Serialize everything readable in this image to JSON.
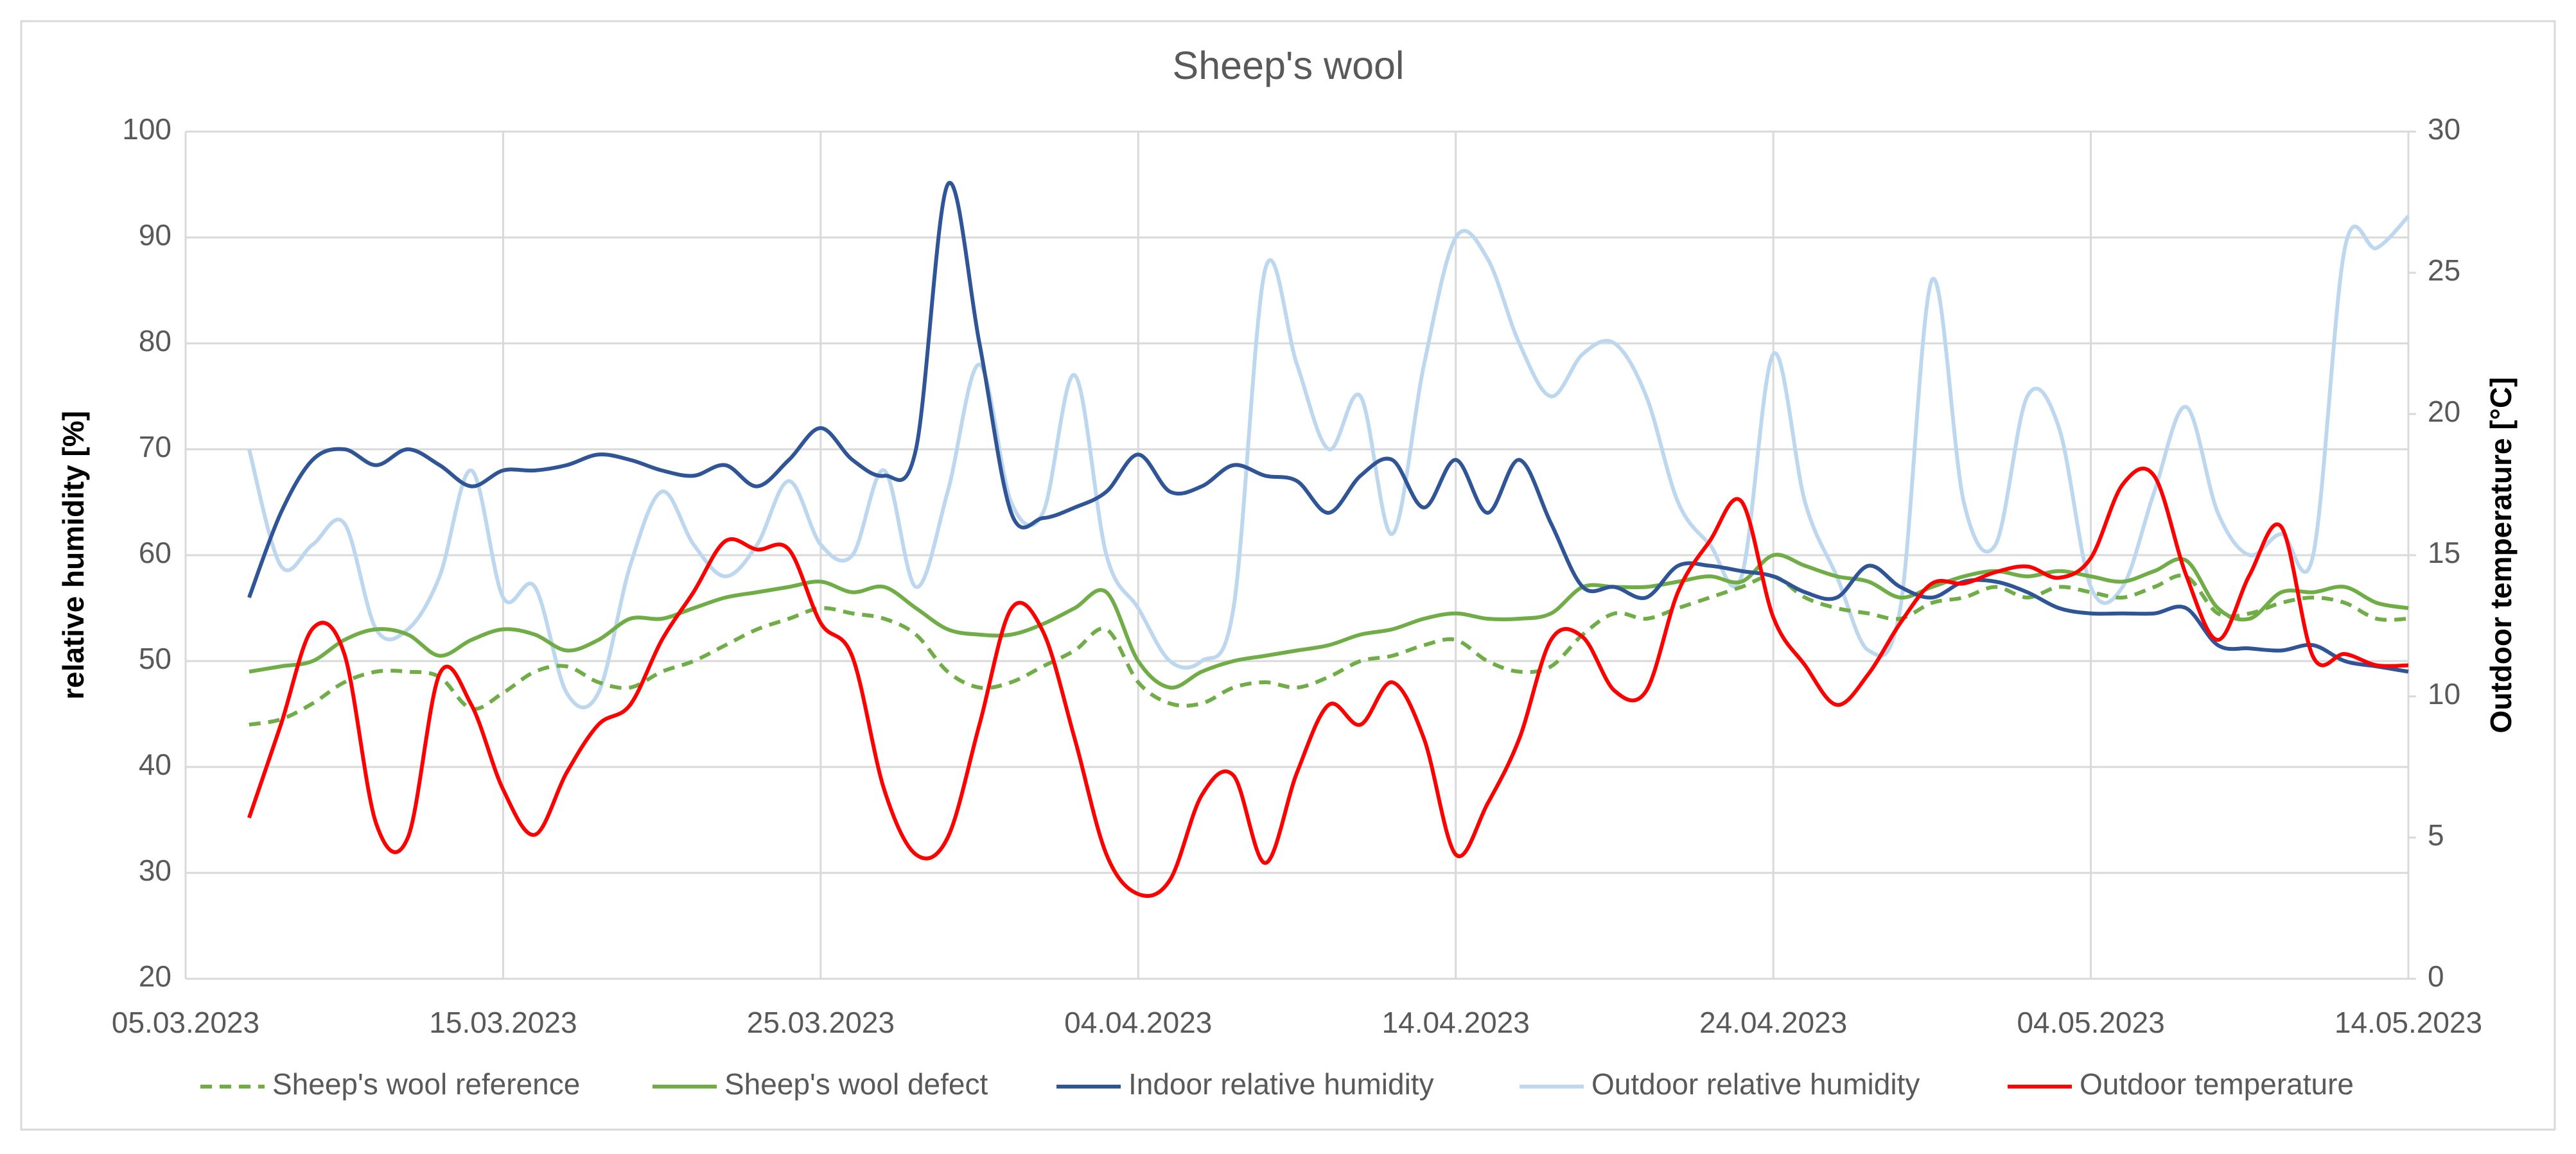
{
  "chart_data": {
    "type": "line",
    "title": "Sheep's wool",
    "y_label": "relative humidity [%]",
    "y2_label": "Outdoor temperature [°C]",
    "x": [
      "07.03.2023",
      "08.03.2023",
      "09.03.2023",
      "10.03.2023",
      "11.03.2023",
      "12.03.2023",
      "13.03.2023",
      "14.03.2023",
      "15.03.2023",
      "16.03.2023",
      "17.03.2023",
      "18.03.2023",
      "19.03.2023",
      "20.03.2023",
      "21.03.2023",
      "22.03.2023",
      "23.03.2023",
      "24.03.2023",
      "25.03.2023",
      "26.03.2023",
      "27.03.2023",
      "28.03.2023",
      "29.03.2023",
      "30.03.2023",
      "31.03.2023",
      "01.04.2023",
      "02.04.2023",
      "03.04.2023",
      "04.04.2023",
      "05.04.2023",
      "06.04.2023",
      "07.04.2023",
      "08.04.2023",
      "09.04.2023",
      "10.04.2023",
      "11.04.2023",
      "12.04.2023",
      "13.04.2023",
      "14.04.2023",
      "15.04.2023",
      "16.04.2023",
      "17.04.2023",
      "18.04.2023",
      "19.04.2023",
      "20.04.2023",
      "21.04.2023",
      "22.04.2023",
      "23.04.2023",
      "24.04.2023",
      "25.04.2023",
      "26.04.2023",
      "27.04.2023",
      "28.04.2023",
      "29.04.2023",
      "30.04.2023",
      "01.05.2023",
      "02.05.2023",
      "03.05.2023",
      "04.05.2023",
      "05.05.2023",
      "06.05.2023",
      "07.05.2023",
      "08.05.2023",
      "09.05.2023",
      "10.05.2023",
      "11.05.2023",
      "12.05.2023",
      "13.05.2023",
      "14.05.2023"
    ],
    "series": [
      {
        "name": "Sheep's wool reference",
        "color": "#70ad47",
        "line_style": "dashed",
        "values": [
          44,
          44.5,
          46,
          48,
          49,
          49,
          48.5,
          45.5,
          47,
          49,
          49.5,
          48,
          47.5,
          49,
          50,
          51.5,
          53,
          54,
          55,
          54.5,
          54,
          52.5,
          49,
          47.5,
          48,
          49.5,
          51,
          53,
          48,
          46,
          46,
          47.5,
          48,
          47.5,
          48.5,
          50,
          50.5,
          51.5,
          52,
          50,
          49,
          49.5,
          52.5,
          54.5,
          54,
          55,
          56,
          57,
          58,
          56,
          55,
          54.5,
          54,
          55.5,
          56,
          57,
          56,
          57,
          56.5,
          56,
          57,
          58,
          54.5,
          54.5,
          55.5,
          56,
          55.5,
          54,
          54
        ]
      },
      {
        "name": "Sheep's wool defect",
        "color": "#70ad47",
        "values": [
          49,
          49.5,
          50,
          52,
          53,
          52.5,
          50.5,
          52,
          53,
          52.5,
          51,
          52,
          54,
          54,
          55,
          56,
          56.5,
          57,
          57.5,
          56.5,
          57,
          55,
          53,
          52.5,
          52.5,
          53.5,
          55,
          56.5,
          50,
          47.5,
          49,
          50,
          50.5,
          51,
          51.5,
          52.5,
          53,
          54,
          54.5,
          54,
          54,
          54.5,
          57,
          57,
          57,
          57.5,
          58,
          57.5,
          60,
          59,
          58,
          57.5,
          56,
          57,
          58,
          58.5,
          58,
          58.5,
          58,
          57.5,
          58.5,
          59.5,
          55,
          54,
          56.5,
          56.5,
          57,
          55.5,
          55
        ]
      },
      {
        "name": "Indoor relative humidity",
        "color": "#2f5597",
        "values": [
          56,
          64,
          69,
          70,
          68.5,
          70,
          68.5,
          66.5,
          68,
          68,
          68.5,
          69.5,
          69,
          68,
          67.5,
          68.5,
          66.5,
          69,
          72,
          69,
          67.5,
          70,
          95,
          80,
          64,
          63.5,
          64.5,
          66,
          69.5,
          66,
          66.5,
          68.5,
          67.5,
          67,
          64,
          67.5,
          69,
          64.5,
          69,
          64,
          69,
          63,
          57,
          57,
          56,
          59,
          59,
          58.5,
          58,
          56.5,
          56,
          59,
          57,
          56,
          57.5,
          57.5,
          56.5,
          55,
          54.5,
          54.5,
          54.5,
          55,
          51.5,
          51.2,
          51,
          51.5,
          50,
          49.5,
          49
        ]
      },
      {
        "name": "Outdoor relative humidity",
        "color": "#bdd7ee",
        "values": [
          70,
          59,
          61,
          63,
          53,
          53,
          58,
          68,
          56,
          57,
          47,
          47,
          59,
          66,
          61,
          58,
          61,
          67,
          61,
          60,
          68,
          57,
          66,
          78,
          65,
          64,
          77,
          60,
          55,
          50,
          50,
          55,
          87,
          78,
          70,
          75,
          62,
          78,
          90,
          88,
          80,
          75,
          79,
          80,
          75,
          65,
          61,
          58,
          79,
          65,
          58,
          51,
          55,
          86,
          65,
          61,
          75,
          72,
          57,
          57,
          66,
          74,
          64,
          60,
          62,
          60,
          89,
          89,
          92
        ]
      },
      {
        "name": "Outdoor temperature",
        "color": "#ff0000",
        "axis": "y2",
        "values": [
          5.7,
          9,
          12.4,
          11.5,
          5.5,
          5,
          10.8,
          9.7,
          6.7,
          5.1,
          7.3,
          9,
          9.7,
          12,
          13.7,
          15.5,
          15.2,
          15.2,
          12.6,
          11.4,
          6.7,
          4.4,
          5,
          9,
          13.1,
          12.3,
          8.5,
          4.4,
          3,
          3.5,
          6.5,
          7.2,
          4.1,
          7.3,
          9.7,
          9,
          10.5,
          8.5,
          4.4,
          6.2,
          8.5,
          12,
          12.1,
          10.2,
          10.2,
          13.7,
          15.5,
          16.9,
          12.8,
          11.1,
          9.7,
          10.8,
          12.6,
          14,
          14,
          14.4,
          14.6,
          14.2,
          14.9,
          17.5,
          17.8,
          14.3,
          12,
          14.3,
          16,
          11.4,
          11.5,
          11.1,
          11.1
        ]
      }
    ],
    "xlim": [
      "05.03.2023",
      "14.05.2023"
    ],
    "xticks": [
      "05.03.2023",
      "15.03.2023",
      "25.03.2023",
      "04.04.2023",
      "14.04.2023",
      "24.04.2023",
      "04.05.2023",
      "14.05.2023"
    ],
    "ylim": [
      20,
      100
    ],
    "yticks": [
      20,
      30,
      40,
      50,
      60,
      70,
      80,
      90,
      100
    ],
    "y2lim": [
      0,
      30
    ],
    "y2ticks": [
      0,
      5,
      10,
      15,
      20,
      25,
      30
    ],
    "grid": true,
    "legend": "bottom"
  }
}
